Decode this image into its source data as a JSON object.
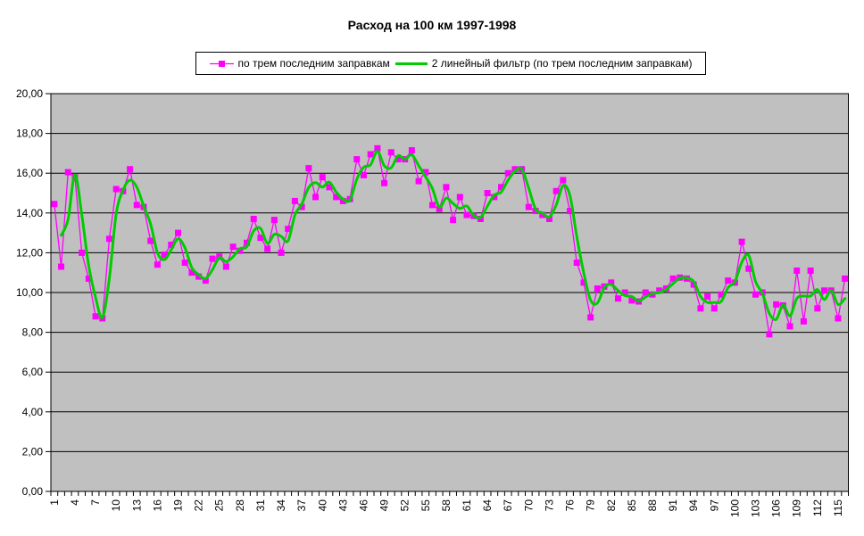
{
  "window": {
    "kind": "excel-style-chart-screenshot"
  },
  "chart_data": {
    "type": "line",
    "title": "Расход на 100 км 1997-1998",
    "xlabel": "",
    "ylabel": "",
    "ylim": [
      0,
      20
    ],
    "y_step": 2,
    "y_tick_labels": [
      "0,00",
      "2,00",
      "4,00",
      "6,00",
      "8,00",
      "10,00",
      "12,00",
      "14,00",
      "16,00",
      "18,00",
      "20,00"
    ],
    "x_tick_labels": [
      "1",
      "4",
      "7",
      "10",
      "13",
      "16",
      "19",
      "22",
      "25",
      "28",
      "31",
      "34",
      "37",
      "40",
      "43",
      "46",
      "49",
      "52",
      "55",
      "58",
      "61",
      "64",
      "67",
      "70",
      "73",
      "76",
      "79",
      "82",
      "85",
      "88",
      "91",
      "94",
      "97",
      "100",
      "103",
      "106",
      "109",
      "112",
      "115"
    ],
    "x_label_step": 3,
    "n_points": 116,
    "grid": "horizontal",
    "plot_bg": "#C0C0C0",
    "grid_color": "#000000",
    "axis_color": "#000000",
    "legend_position": "top",
    "series": [
      {
        "name": "по трем последним заправкам",
        "color": "#FF00FF",
        "marker": "square",
        "line_width": 1.3,
        "values": [
          14.45,
          11.3,
          16.05,
          15.8,
          12.0,
          10.7,
          8.8,
          8.7,
          12.7,
          15.2,
          15.1,
          16.2,
          14.4,
          14.3,
          12.6,
          11.4,
          11.9,
          12.4,
          13.0,
          11.5,
          11.0,
          10.8,
          10.6,
          11.7,
          11.8,
          11.3,
          12.3,
          12.1,
          12.5,
          13.7,
          12.75,
          12.2,
          13.65,
          12.0,
          13.2,
          14.6,
          14.3,
          16.25,
          14.8,
          15.8,
          15.3,
          14.8,
          14.6,
          14.7,
          16.7,
          15.9,
          16.95,
          17.25,
          15.5,
          17.05,
          16.7,
          16.7,
          17.15,
          15.6,
          16.05,
          14.4,
          14.2,
          15.3,
          13.65,
          14.8,
          13.9,
          13.85,
          13.7,
          15.0,
          14.8,
          15.3,
          16.0,
          16.2,
          16.2,
          14.3,
          14.1,
          13.9,
          13.7,
          15.1,
          15.65,
          14.1,
          11.5,
          10.5,
          8.75,
          10.2,
          10.3,
          10.5,
          9.7,
          10.0,
          9.6,
          9.55,
          10.0,
          9.9,
          10.1,
          10.2,
          10.7,
          10.75,
          10.7,
          10.4,
          9.2,
          9.8,
          9.2,
          9.9,
          10.6,
          10.5,
          12.55,
          11.2,
          9.9,
          10.0,
          7.9,
          9.4,
          9.35,
          8.3,
          11.1,
          8.55,
          11.1,
          9.2,
          10.1,
          10.1,
          8.7,
          10.7
        ]
      },
      {
        "name": "2 линейный фильтр (по трем последним заправкам)",
        "color": "#00CC00",
        "marker": "none",
        "line_width": 3,
        "derived": "moving_average",
        "period": 2,
        "smoothed": true
      }
    ]
  }
}
